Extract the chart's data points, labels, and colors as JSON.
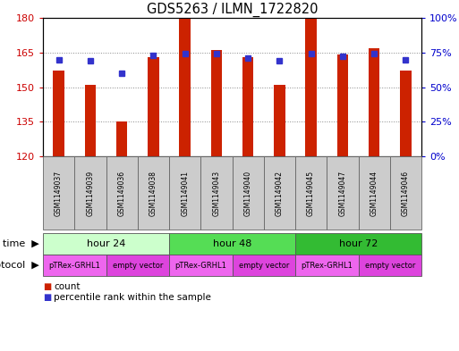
{
  "title": "GDS5263 / ILMN_1722820",
  "samples": [
    "GSM1149037",
    "GSM1149039",
    "GSM1149036",
    "GSM1149038",
    "GSM1149041",
    "GSM1149043",
    "GSM1149040",
    "GSM1149042",
    "GSM1149045",
    "GSM1149047",
    "GSM1149044",
    "GSM1149046"
  ],
  "counts": [
    157,
    151,
    135,
    163,
    180,
    166,
    163,
    151,
    180,
    164,
    167,
    157
  ],
  "percentiles": [
    70,
    69,
    60,
    73,
    74,
    74,
    71,
    69,
    74,
    72,
    74,
    70
  ],
  "ylim_left": [
    120,
    180
  ],
  "ylim_right": [
    0,
    100
  ],
  "yticks_left": [
    120,
    135,
    150,
    165,
    180
  ],
  "yticks_right": [
    0,
    25,
    50,
    75,
    100
  ],
  "ytick_labels_right": [
    "0%",
    "25%",
    "50%",
    "75%",
    "100%"
  ],
  "bar_color": "#cc2200",
  "dot_color": "#3333cc",
  "time_groups": [
    {
      "label": "hour 24",
      "start": 0,
      "end": 4,
      "color": "#ccffcc"
    },
    {
      "label": "hour 48",
      "start": 4,
      "end": 8,
      "color": "#55dd55"
    },
    {
      "label": "hour 72",
      "start": 8,
      "end": 12,
      "color": "#33bb33"
    }
  ],
  "protocol_groups": [
    {
      "label": "pTRex-GRHL1",
      "start": 0,
      "end": 2,
      "color": "#ee66ee"
    },
    {
      "label": "empty vector",
      "start": 2,
      "end": 4,
      "color": "#dd44dd"
    },
    {
      "label": "pTRex-GRHL1",
      "start": 4,
      "end": 6,
      "color": "#ee66ee"
    },
    {
      "label": "empty vector",
      "start": 6,
      "end": 8,
      "color": "#dd44dd"
    },
    {
      "label": "pTRex-GRHL1",
      "start": 8,
      "end": 10,
      "color": "#ee66ee"
    },
    {
      "label": "empty vector",
      "start": 10,
      "end": 12,
      "color": "#dd44dd"
    }
  ],
  "legend_count_color": "#cc2200",
  "legend_dot_color": "#3333cc",
  "sample_box_color": "#cccccc",
  "grid_color": "#888888",
  "background_color": "#ffffff",
  "left_label_color": "#cc0000",
  "right_label_color": "#0000cc"
}
